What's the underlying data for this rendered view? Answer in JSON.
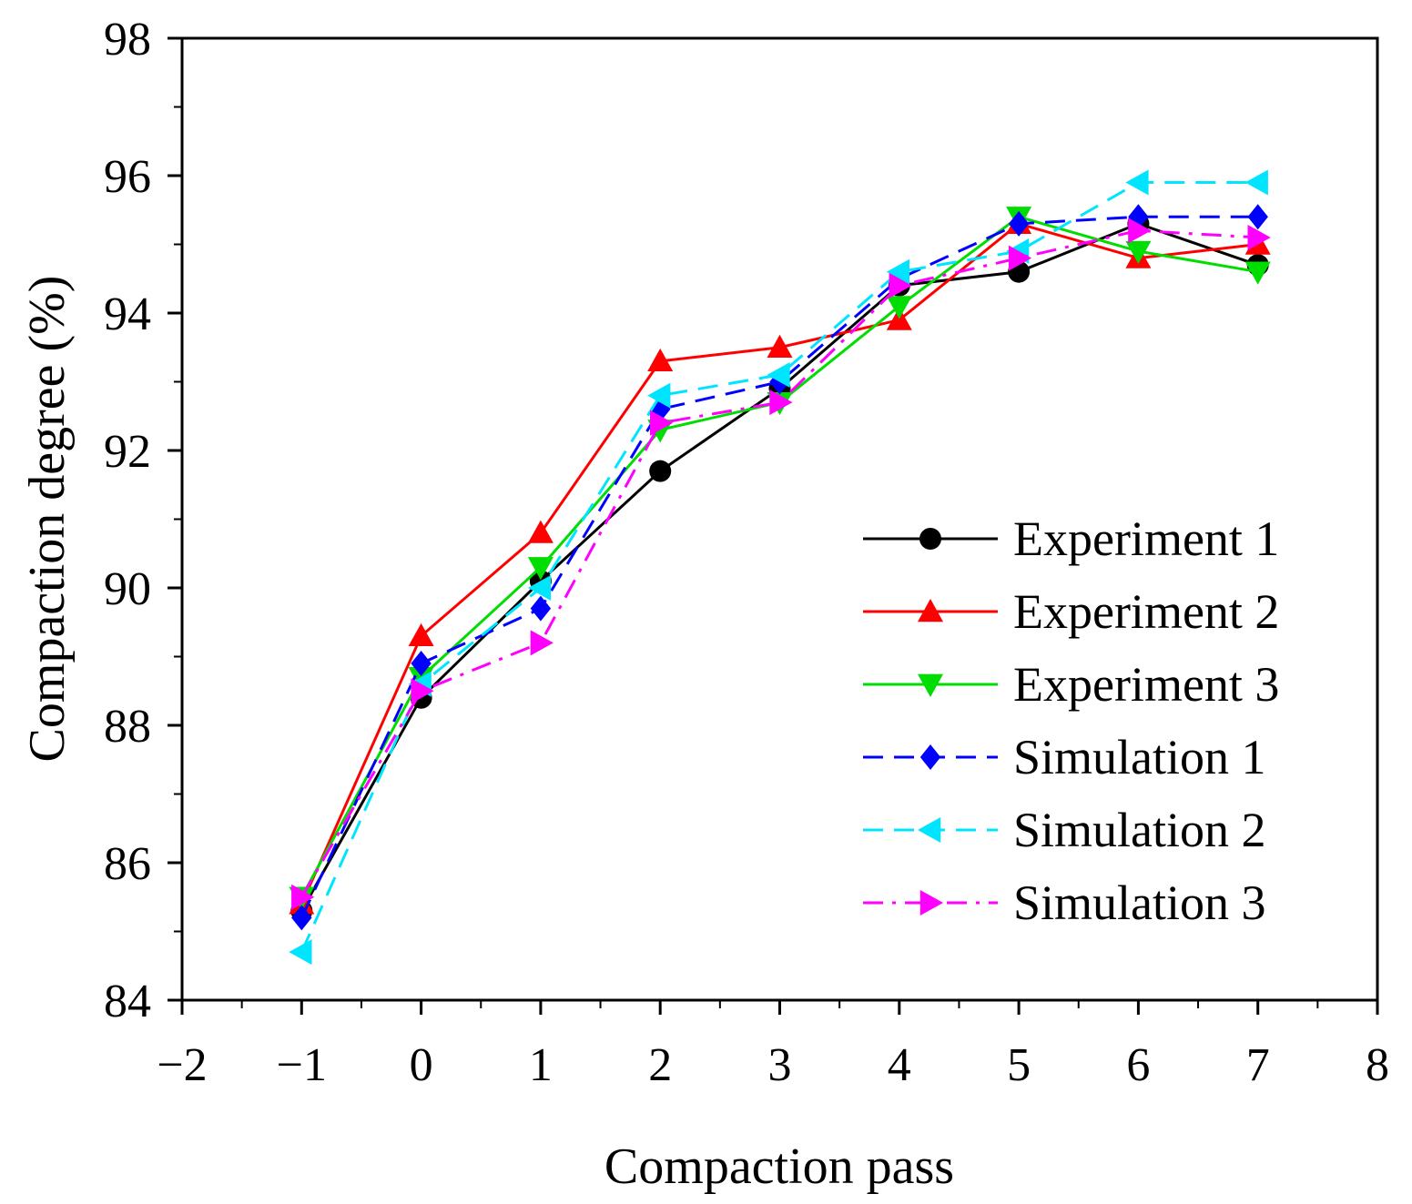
{
  "chart_data": {
    "type": "line",
    "title": "",
    "xlabel": "Compaction pass",
    "ylabel": "Compaction degree (%)",
    "xlim": [
      -2,
      8
    ],
    "ylim": [
      84,
      98
    ],
    "x_ticks": [
      -2,
      -1,
      0,
      1,
      2,
      3,
      4,
      5,
      6,
      7,
      8
    ],
    "x_tick_labels": [
      "−2",
      "−1",
      "0",
      "1",
      "2",
      "3",
      "4",
      "5",
      "6",
      "7",
      "8"
    ],
    "y_ticks": [
      84,
      86,
      88,
      90,
      92,
      94,
      96,
      98
    ],
    "y_tick_labels": [
      "84",
      "86",
      "88",
      "90",
      "92",
      "94",
      "96",
      "98"
    ],
    "grid": false,
    "legend_position": "bottom-right",
    "x": [
      -1,
      0,
      1,
      2,
      3,
      4,
      5,
      6,
      7
    ],
    "series": [
      {
        "name": "Experiment 1",
        "color": "#000000",
        "dash": "solid",
        "marker": "circle",
        "values": [
          85.3,
          88.4,
          90.1,
          91.7,
          92.9,
          94.4,
          94.6,
          95.3,
          94.7
        ]
      },
      {
        "name": "Experiment 2",
        "color": "#ff0000",
        "dash": "solid",
        "marker": "triangle-up",
        "values": [
          85.4,
          89.3,
          90.8,
          93.3,
          93.5,
          93.9,
          95.3,
          94.8,
          95.0
        ]
      },
      {
        "name": "Experiment 3",
        "color": "#00dd00",
        "dash": "solid",
        "marker": "triangle-down",
        "values": [
          85.5,
          88.7,
          90.3,
          92.3,
          92.7,
          94.1,
          95.4,
          94.9,
          94.6
        ]
      },
      {
        "name": "Simulation 1",
        "color": "#0000ff",
        "dash": "dash",
        "marker": "diamond",
        "values": [
          85.2,
          88.9,
          89.7,
          92.6,
          93.0,
          94.5,
          95.3,
          95.4,
          95.4
        ]
      },
      {
        "name": "Simulation 2",
        "color": "#00e5ff",
        "dash": "dash",
        "marker": "triangle-left",
        "values": [
          84.7,
          88.6,
          90.0,
          92.8,
          93.1,
          94.6,
          94.9,
          95.9,
          95.9
        ]
      },
      {
        "name": "Simulation 3",
        "color": "#ff00ff",
        "dash": "dashdot",
        "marker": "triangle-right",
        "values": [
          85.5,
          88.5,
          89.2,
          92.4,
          92.7,
          94.4,
          94.8,
          95.2,
          95.1
        ]
      }
    ]
  }
}
